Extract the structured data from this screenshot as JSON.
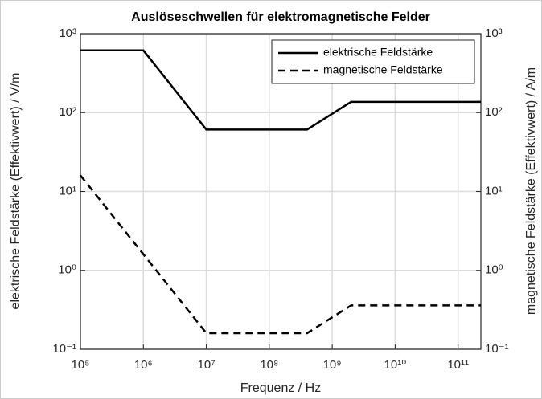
{
  "chart_data": {
    "type": "line",
    "title": "Auslöseschwellen für elektromagnetische Felder",
    "xlabel": "Frequenz / Hz",
    "ylabel": "elektrische Feldstärke (Effektivwert) / V/m",
    "y2label": "magnetische Feldstärke (Effektivwert) / A/m",
    "x": [
      100000,
      1000000,
      10000000,
      400000000,
      2000000000,
      230000000000
    ],
    "series": [
      {
        "name": "elektrische Feldstärke",
        "color": "#000000",
        "dash": "solid",
        "values": [
          614,
          614,
          61,
          61,
          137,
          137
        ]
      },
      {
        "name": "magnetische Feldstärke",
        "color": "#000000",
        "dash": "dashed",
        "axis": "y2",
        "values": [
          16,
          1.6,
          0.16,
          0.16,
          0.36,
          0.36
        ]
      }
    ],
    "xscale": "log",
    "yscale": "log",
    "y2scale": "log",
    "xlim": [
      100000,
      230000000000
    ],
    "xticks": [
      {
        "value": 100000,
        "label": "10⁵"
      },
      {
        "value": 1000000,
        "label": "10⁶"
      },
      {
        "value": 10000000,
        "label": "10⁷"
      },
      {
        "value": 100000000,
        "label": "10⁸"
      },
      {
        "value": 1000000000,
        "label": "10⁹"
      },
      {
        "value": 10000000000,
        "label": "10¹⁰"
      },
      {
        "value": 100000000000,
        "label": "10¹¹"
      }
    ],
    "ylim": [
      0.1,
      1000
    ],
    "yticks": [
      {
        "value": 0.1,
        "label": "10⁻¹"
      },
      {
        "value": 1,
        "label": "10⁰"
      },
      {
        "value": 10,
        "label": "10¹"
      },
      {
        "value": 100,
        "label": "10²"
      },
      {
        "value": 1000,
        "label": "10³"
      }
    ],
    "y2lim": [
      0.1,
      1000
    ],
    "y2ticks": [
      {
        "value": 0.1,
        "label": "10⁻¹"
      },
      {
        "value": 1,
        "label": "10⁰"
      },
      {
        "value": 10,
        "label": "10¹"
      },
      {
        "value": 100,
        "label": "10²"
      },
      {
        "value": 1000,
        "label": "10³"
      }
    ],
    "grid": true,
    "legend": "northeast"
  }
}
